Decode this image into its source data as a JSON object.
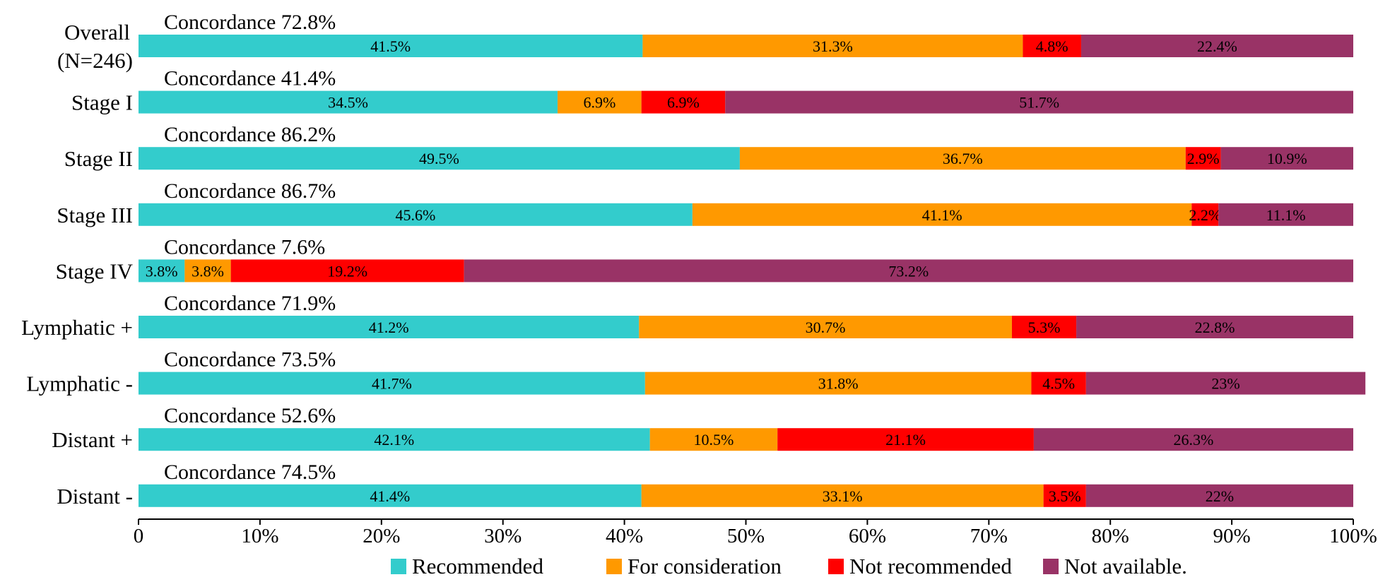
{
  "chart_data": {
    "type": "bar",
    "orientation": "horizontal",
    "stacked": true,
    "title": "",
    "xlabel": "",
    "ylabel": "",
    "xlim": [
      0,
      100
    ],
    "x_ticks": [
      "0",
      "10%",
      "20%",
      "30%",
      "40%",
      "50%",
      "60%",
      "70%",
      "80%",
      "90%",
      "100%"
    ],
    "grid": false,
    "legend_position": "bottom",
    "categories": [
      "Overall (N=246)",
      "Stage I",
      "Stage II",
      "Stage III",
      "Stage IV",
      "Lymphatic +",
      "Lymphatic -",
      "Distant +",
      "Distant -"
    ],
    "category_label_lines": [
      [
        "Overall",
        "(N=246)"
      ],
      [
        "Stage I"
      ],
      [
        "Stage II"
      ],
      [
        "Stage III"
      ],
      [
        "Stage IV"
      ],
      [
        "Lymphatic +"
      ],
      [
        "Lymphatic -"
      ],
      [
        "Distant +"
      ],
      [
        "Distant -"
      ]
    ],
    "annotations": [
      "Concordance 72.8%",
      "Concordance 41.4%",
      "Concordance 86.2%",
      "Concordance 86.7%",
      "Concordance 7.6%",
      "Concordance 71.9%",
      "Concordance 73.5%",
      "Concordance 52.6%",
      "Concordance 74.5%"
    ],
    "series": [
      {
        "name": "Recommended",
        "color": "#33CCCC",
        "values": [
          41.5,
          34.5,
          49.5,
          45.6,
          3.8,
          41.2,
          41.7,
          42.1,
          41.4
        ],
        "labels": [
          "41.5%",
          "34.5%",
          "49.5%",
          "45.6%",
          "3.8%",
          "41.2%",
          "41.7%",
          "42.1%",
          "41.4%"
        ]
      },
      {
        "name": "For consideration",
        "color": "#FF9900",
        "values": [
          31.3,
          6.9,
          36.7,
          41.1,
          3.8,
          30.7,
          31.8,
          10.5,
          33.1
        ],
        "labels": [
          "31.3%",
          "6.9%",
          "36.7%",
          "41.1%",
          "3.8%",
          "30.7%",
          "31.8%",
          "10.5%",
          "33.1%"
        ]
      },
      {
        "name": "Not recommended",
        "color": "#FF0000",
        "values": [
          4.8,
          6.9,
          2.9,
          2.2,
          19.2,
          5.3,
          4.5,
          21.1,
          3.5
        ],
        "labels": [
          "4.8%",
          "6.9%",
          "2.9%",
          "2.2%",
          "19.2%",
          "5.3%",
          "4.5%",
          "21.1%",
          "3.5%"
        ]
      },
      {
        "name": "Not available.",
        "color": "#993366",
        "values": [
          22.4,
          51.7,
          10.9,
          11.1,
          73.2,
          22.8,
          23,
          26.3,
          22
        ],
        "labels": [
          "22.4%",
          "51.7%",
          "10.9%",
          "11.1%",
          "73.2%",
          "22.8%",
          "23%",
          "26.3%",
          "22%"
        ]
      }
    ]
  }
}
